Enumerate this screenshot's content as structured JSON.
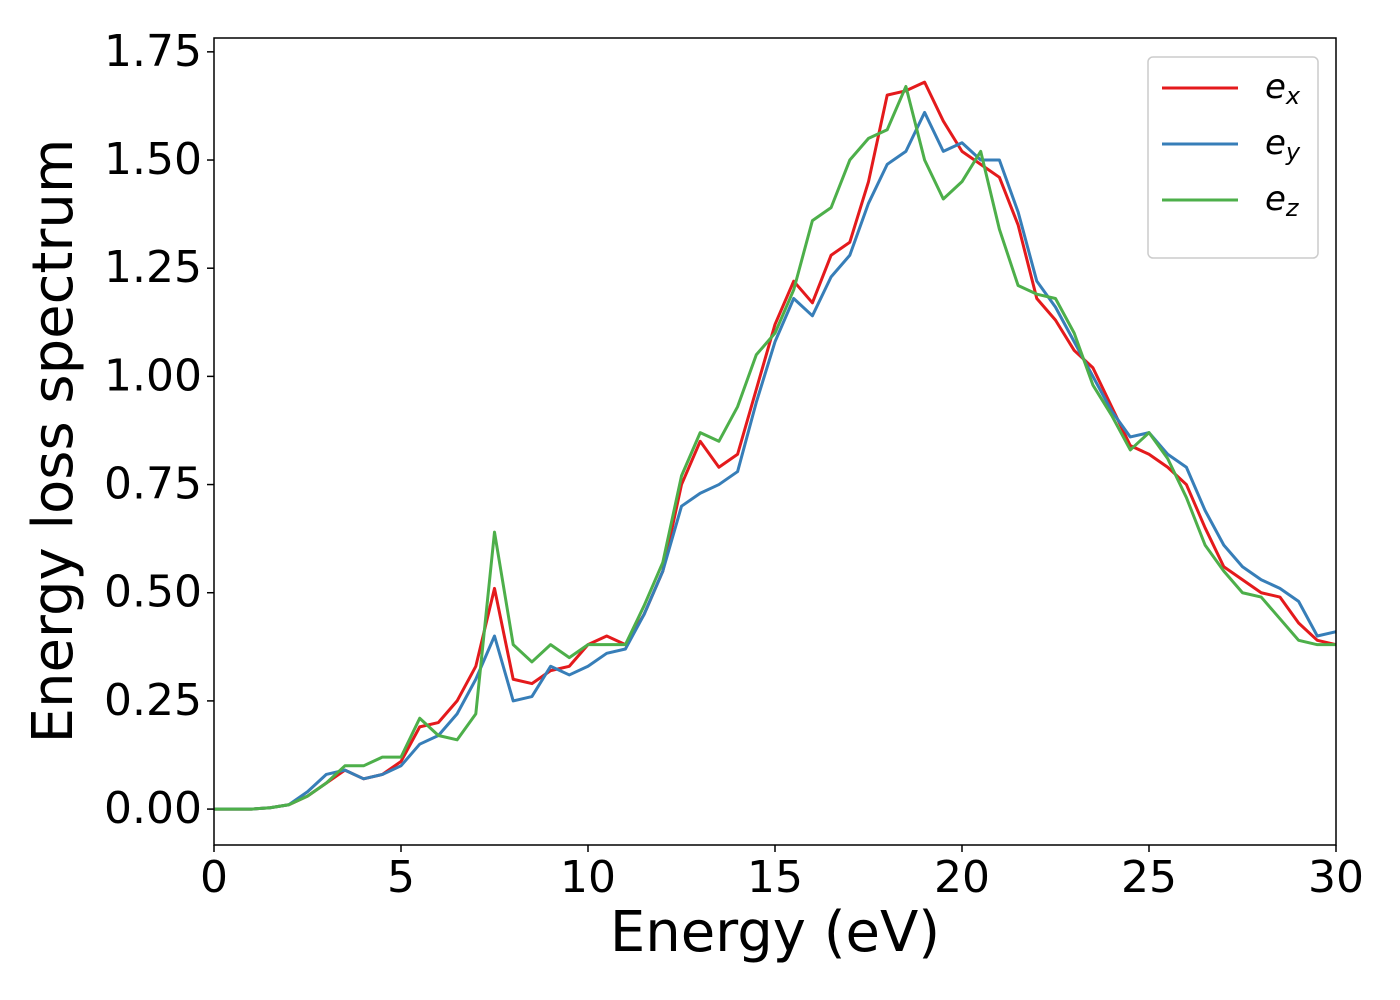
{
  "chart_data": {
    "type": "line",
    "xlabel": "Energy (eV)",
    "ylabel": "Energy loss spectrum",
    "x": [
      0,
      0.5,
      1,
      1.5,
      2,
      2.5,
      3,
      3.5,
      4,
      4.5,
      5,
      5.5,
      6,
      6.5,
      7,
      7.5,
      8,
      8.5,
      9,
      9.5,
      10,
      10.5,
      11,
      11.5,
      12,
      12.5,
      13,
      13.5,
      14,
      14.5,
      15,
      15.5,
      16,
      16.5,
      17,
      17.5,
      18,
      18.5,
      19,
      19.5,
      20,
      20.5,
      21,
      21.5,
      22,
      22.5,
      23,
      23.5,
      24,
      24.5,
      25,
      25.5,
      26,
      26.5,
      27,
      27.5,
      28,
      28.5,
      29,
      29.5,
      30
    ],
    "series": [
      {
        "name": "ex",
        "color": "#e41a1c",
        "values": [
          0,
          0,
          0,
          0.003,
          0.01,
          0.03,
          0.06,
          0.09,
          0.07,
          0.08,
          0.11,
          0.19,
          0.2,
          0.25,
          0.33,
          0.51,
          0.3,
          0.29,
          0.32,
          0.33,
          0.38,
          0.4,
          0.38,
          0.45,
          0.55,
          0.75,
          0.85,
          0.79,
          0.82,
          0.97,
          1.12,
          1.22,
          1.17,
          1.28,
          1.31,
          1.45,
          1.65,
          1.66,
          1.68,
          1.59,
          1.52,
          1.49,
          1.46,
          1.35,
          1.18,
          1.13,
          1.06,
          1.02,
          0.93,
          0.84,
          0.82,
          0.79,
          0.75,
          0.65,
          0.56,
          0.53,
          0.5,
          0.49,
          0.43,
          0.39,
          0.38
        ]
      },
      {
        "name": "ey",
        "color": "#377eb8",
        "values": [
          0,
          0,
          0,
          0.003,
          0.01,
          0.04,
          0.08,
          0.09,
          0.07,
          0.08,
          0.1,
          0.15,
          0.17,
          0.22,
          0.3,
          0.4,
          0.25,
          0.26,
          0.33,
          0.31,
          0.33,
          0.36,
          0.37,
          0.45,
          0.55,
          0.7,
          0.73,
          0.75,
          0.78,
          0.94,
          1.08,
          1.18,
          1.14,
          1.23,
          1.28,
          1.4,
          1.49,
          1.52,
          1.61,
          1.52,
          1.54,
          1.5,
          1.5,
          1.38,
          1.22,
          1.16,
          1.08,
          1.0,
          0.92,
          0.86,
          0.87,
          0.82,
          0.79,
          0.69,
          0.61,
          0.56,
          0.53,
          0.51,
          0.48,
          0.4,
          0.41
        ]
      },
      {
        "name": "ez",
        "color": "#4daf4a",
        "values": [
          0,
          0,
          0,
          0.003,
          0.01,
          0.03,
          0.06,
          0.1,
          0.1,
          0.12,
          0.12,
          0.21,
          0.17,
          0.16,
          0.22,
          0.64,
          0.38,
          0.34,
          0.38,
          0.35,
          0.38,
          0.38,
          0.38,
          0.47,
          0.57,
          0.77,
          0.87,
          0.85,
          0.93,
          1.05,
          1.1,
          1.2,
          1.36,
          1.39,
          1.5,
          1.55,
          1.57,
          1.67,
          1.5,
          1.41,
          1.45,
          1.52,
          1.34,
          1.21,
          1.19,
          1.18,
          1.1,
          0.98,
          0.91,
          0.83,
          0.87,
          0.81,
          0.72,
          0.61,
          0.55,
          0.5,
          0.49,
          0.44,
          0.39,
          0.38,
          0.38
        ]
      }
    ],
    "xlim": [
      0,
      30
    ],
    "xticks": [
      0,
      5,
      10,
      15,
      20,
      25,
      30
    ],
    "ylim": [
      -0.083,
      1.782
    ],
    "yticks": [
      {
        "value": 0,
        "label": "0.00"
      },
      {
        "value": 0.25,
        "label": "0.25"
      },
      {
        "value": 0.5,
        "label": "0.50"
      },
      {
        "value": 0.75,
        "label": "0.75"
      },
      {
        "value": 1,
        "label": "1.00"
      },
      {
        "value": 1.25,
        "label": "1.25"
      },
      {
        "value": 1.5,
        "label": "1.50"
      },
      {
        "value": 1.75,
        "label": "1.75"
      }
    ],
    "grid": false,
    "legend": "upper right"
  }
}
